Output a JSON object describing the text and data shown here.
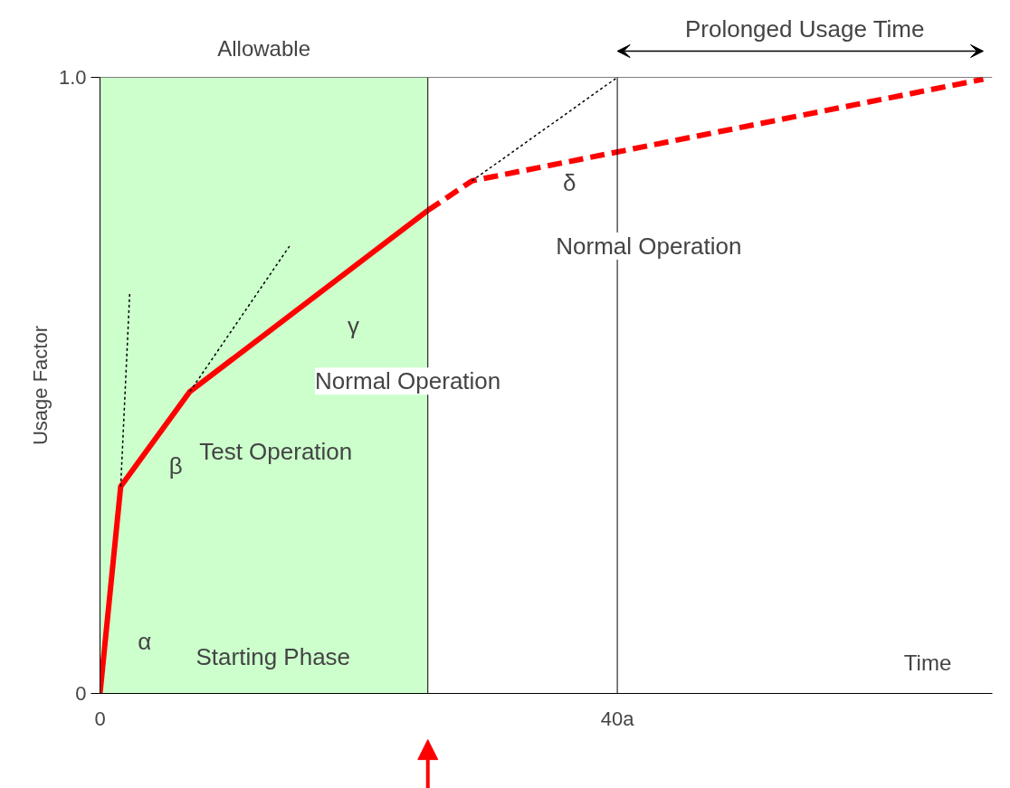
{
  "chart_data": {
    "type": "line",
    "xlabel": "Time",
    "ylabel": "Usage Factor",
    "xlim": [
      0,
      69
    ],
    "ylim": [
      0,
      1.0
    ],
    "xticks": [
      0,
      {
        "value": 40,
        "label": "40a"
      }
    ],
    "yticks": [
      0,
      {
        "value": 1,
        "label": "1.0"
      }
    ],
    "grid": false,
    "series": [
      {
        "color": "#ff0000",
        "line_style": "solid",
        "x": [
          0,
          1.6,
          6.95,
          25.35
        ],
        "values": [
          0,
          0.336,
          0.49,
          0.784
        ]
      },
      {
        "color": "#ff0000",
        "line_style": "dashed",
        "x": [
          25.35,
          28.76,
          68.3
        ],
        "values": [
          0.784,
          0.832,
          0.997
        ]
      },
      {
        "color": "#000000",
        "line_style": "dotted",
        "x": [
          1.6,
          2.3
        ],
        "values": [
          0.336,
          0.651
        ]
      },
      {
        "color": "#000000",
        "line_style": "dotted",
        "x": [
          6.95,
          14.65
        ],
        "values": [
          0.49,
          0.726
        ]
      },
      {
        "color": "#000000",
        "line_style": "dotted",
        "x": [
          28.76,
          40
        ],
        "values": [
          0.832,
          1.0
        ]
      }
    ],
    "bands": [
      {
        "axis": "x",
        "from": 0,
        "to": 25.35,
        "label": "Allowable",
        "color": "#ccffcc"
      }
    ],
    "ref_lines": [
      {
        "axis": "x",
        "value": 25.35,
        "color": "#000000"
      },
      {
        "axis": "x",
        "value": 40,
        "color": "#000000"
      }
    ],
    "annotations": [
      "Prolonged Usage Time",
      "α",
      "Starting Phase",
      "β",
      "Test Operation",
      "γ",
      "Normal Operation",
      "δ",
      "Normal Operation"
    ]
  }
}
